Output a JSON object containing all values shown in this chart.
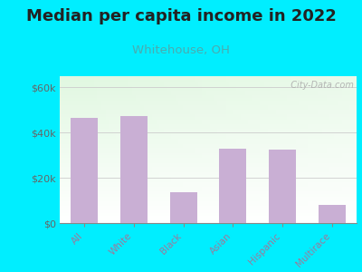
{
  "title": "Median per capita income in 2022",
  "subtitle": "Whitehouse, OH",
  "categories": [
    "All",
    "White",
    "Black",
    "Asian",
    "Hispanic",
    "Multirace"
  ],
  "values": [
    46500,
    47500,
    13500,
    33000,
    32500,
    8000
  ],
  "bar_color": "#c9afd4",
  "title_fontsize": 13,
  "subtitle_fontsize": 9.5,
  "subtitle_color": "#4aacb0",
  "title_color": "#222222",
  "background_color": "#00eeff",
  "ylim": [
    0,
    65000
  ],
  "yticks": [
    0,
    20000,
    40000,
    60000
  ],
  "ytick_labels": [
    "$0",
    "$20k",
    "$40k",
    "$60k"
  ],
  "xtick_color": "#9b7a9b",
  "ytick_color": "#666666",
  "grid_color": "#cccccc",
  "watermark": "  City-Data.com"
}
